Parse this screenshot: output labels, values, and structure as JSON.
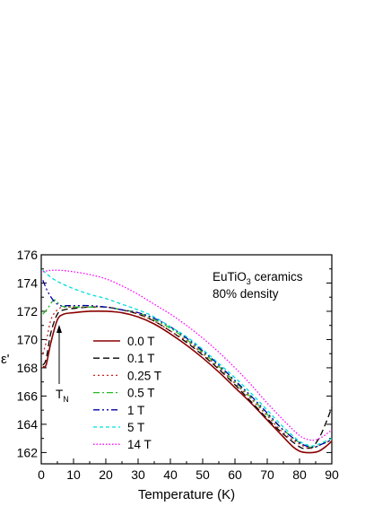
{
  "chart_data": {
    "type": "line",
    "title": "",
    "xlabel": "Temperature (K)",
    "ylabel": "ε'",
    "xlim": [
      0,
      90
    ],
    "ylim": [
      161.2,
      176
    ],
    "xticks": [
      0,
      10,
      20,
      30,
      40,
      50,
      60,
      70,
      80,
      90
    ],
    "yticks": [
      162,
      164,
      166,
      168,
      170,
      172,
      174,
      176
    ],
    "grid": false,
    "legend_position": "lower-left",
    "annotation": {
      "text_main": "EuTiO",
      "text_sub": "3",
      "text_rest": " ceramics",
      "line2": "80% density"
    },
    "tn_label": {
      "main": "T",
      "sub": "N"
    },
    "series": [
      {
        "name": "0.0 T",
        "color": "#8b0000",
        "dash": "",
        "x": [
          0.5,
          1.5,
          3,
          5,
          7,
          10,
          15,
          20,
          25,
          30,
          35,
          40,
          45,
          50,
          55,
          60,
          65,
          70,
          75,
          78,
          80,
          82,
          84,
          86,
          88,
          90
        ],
        "y": [
          168.1,
          168.2,
          169.8,
          171.4,
          171.8,
          171.9,
          172.0,
          172.0,
          171.9,
          171.6,
          171.1,
          170.4,
          169.6,
          168.7,
          167.7,
          166.6,
          165.5,
          164.3,
          163.1,
          162.4,
          162.1,
          162.0,
          162.0,
          162.1,
          162.4,
          162.8
        ]
      },
      {
        "name": "0.1 T",
        "color": "#000000",
        "dash": "7,4",
        "x": [
          0.5,
          1.5,
          3,
          5,
          7,
          10,
          15,
          20,
          25,
          30,
          35,
          40,
          45,
          50,
          55,
          60,
          65,
          70,
          75,
          80,
          82,
          84,
          86,
          88,
          90
        ],
        "y": [
          168.2,
          168.6,
          170.5,
          171.8,
          172.1,
          172.2,
          172.3,
          172.3,
          172.1,
          171.8,
          171.3,
          170.6,
          169.8,
          168.9,
          167.9,
          166.8,
          165.6,
          164.4,
          163.3,
          162.4,
          162.3,
          162.4,
          163.0,
          164.0,
          165.2
        ]
      },
      {
        "name": "0.25 T",
        "color": "#cc2222",
        "dash": "2,3",
        "x": [
          0.5,
          1.5,
          3,
          5,
          7,
          10,
          15,
          20,
          25,
          30,
          35,
          40,
          45,
          50,
          55,
          60,
          65,
          70,
          75,
          80,
          83,
          85,
          87,
          90
        ],
        "y": [
          169.0,
          169.8,
          171.4,
          172.1,
          172.3,
          172.3,
          172.3,
          172.3,
          172.1,
          171.8,
          171.3,
          170.6,
          169.9,
          169.0,
          168.0,
          166.9,
          165.8,
          164.6,
          163.4,
          162.6,
          162.3,
          162.4,
          162.6,
          162.9
        ]
      },
      {
        "name": "0.5 T",
        "color": "#22bb22",
        "dash": "7,3,2,3",
        "x": [
          0.5,
          2,
          4,
          6,
          8,
          10,
          15,
          20,
          25,
          30,
          35,
          40,
          45,
          50,
          55,
          60,
          65,
          70,
          75,
          80,
          83,
          85,
          87,
          90
        ],
        "y": [
          171.8,
          172.2,
          172.8,
          172.4,
          172.3,
          172.3,
          172.3,
          172.3,
          172.1,
          171.9,
          171.4,
          170.8,
          170.0,
          169.1,
          168.1,
          167.0,
          165.9,
          164.7,
          163.6,
          162.7,
          162.4,
          162.4,
          162.6,
          162.9
        ]
      },
      {
        "name": "1 T",
        "color": "#0000aa",
        "dash": "7,3,2,3,2,3",
        "x": [
          0.5,
          2,
          4,
          6,
          8,
          10,
          15,
          20,
          25,
          30,
          35,
          40,
          45,
          50,
          55,
          60,
          65,
          70,
          75,
          80,
          83,
          85,
          87,
          90
        ],
        "y": [
          174.2,
          173.4,
          172.7,
          172.4,
          172.4,
          172.4,
          172.4,
          172.3,
          172.1,
          171.9,
          171.5,
          170.9,
          170.1,
          169.2,
          168.2,
          167.1,
          166.0,
          164.8,
          163.6,
          162.7,
          162.4,
          162.4,
          162.6,
          162.9
        ]
      },
      {
        "name": "5 T",
        "color": "#00dddd",
        "dash": "4,3",
        "x": [
          0.5,
          3,
          6,
          10,
          15,
          20,
          25,
          30,
          35,
          40,
          45,
          50,
          55,
          60,
          65,
          70,
          75,
          80,
          83,
          85,
          87,
          90
        ],
        "y": [
          174.9,
          174.4,
          174.0,
          173.6,
          173.2,
          172.9,
          172.5,
          172.1,
          171.6,
          170.9,
          170.2,
          169.3,
          168.3,
          167.3,
          166.2,
          165.0,
          163.8,
          162.8,
          162.5,
          162.5,
          162.7,
          163.0
        ]
      },
      {
        "name": "14 T",
        "color": "#ff00ff",
        "dash": "1.5,2",
        "x": [
          0.5,
          3,
          6,
          10,
          15,
          20,
          25,
          30,
          35,
          40,
          45,
          50,
          55,
          60,
          65,
          70,
          75,
          80,
          83,
          85,
          87,
          90
        ],
        "y": [
          174.8,
          174.9,
          174.9,
          174.8,
          174.6,
          174.3,
          173.8,
          173.2,
          172.5,
          171.8,
          171.0,
          170.1,
          169.1,
          168.0,
          166.8,
          165.5,
          164.3,
          163.2,
          162.9,
          162.9,
          163.1,
          163.6
        ]
      }
    ]
  }
}
